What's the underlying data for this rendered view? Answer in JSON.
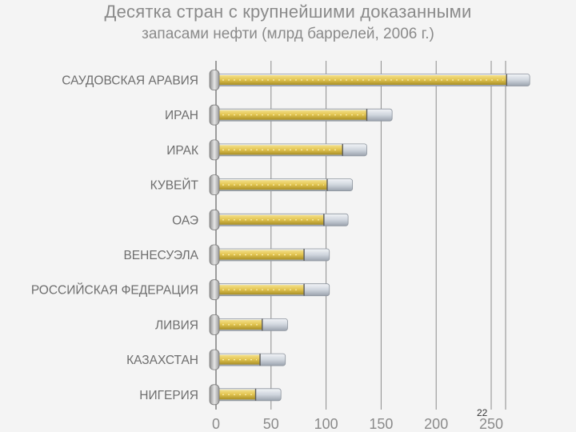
{
  "slide": {
    "page_number": "22"
  },
  "chart_data": {
    "type": "bar",
    "orientation": "horizontal",
    "title_line1": "Десятка стран с крупнейшими доказанными",
    "title_line2": "запасами нефти (млрд баррелей, 2006 г.)",
    "categories": [
      "САУДОВСКАЯ АРАВИЯ",
      "ИРАН",
      "ИРАК",
      "КУВЕЙТ",
      "ОАЭ",
      "ВЕНЕСУЭЛА",
      "РОССИЙСКАЯ ФЕДЕРАЦИЯ",
      "ЛИВИЯ",
      "КАЗАХСТАН",
      "НИГЕРИЯ"
    ],
    "values": [
      264,
      137,
      115,
      101,
      98,
      80,
      80,
      42,
      40,
      36
    ],
    "bar_extent_values": [
      285,
      160,
      137,
      124,
      120,
      103,
      103,
      65,
      63,
      59
    ],
    "xlim": [
      0,
      265
    ],
    "xticks": [
      0,
      50,
      100,
      150,
      200,
      250
    ],
    "xtick_labels": [
      "0",
      "50",
      "100",
      "150",
      "200",
      "250"
    ],
    "grid": true,
    "colors": {
      "fill": "#e0c455",
      "fill_dark": "#b39a2c",
      "glass": "#cfd5dd",
      "grid": "#8c8c8c"
    }
  }
}
